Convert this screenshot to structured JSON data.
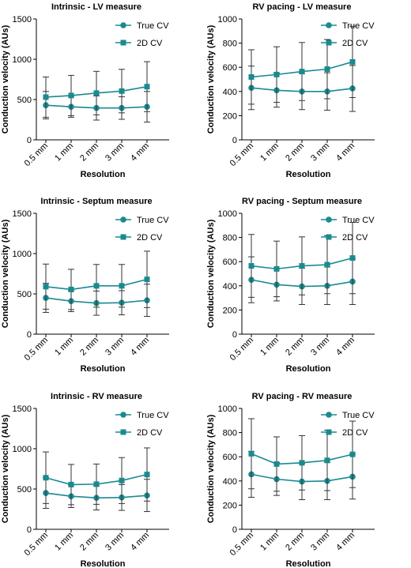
{
  "colors": {
    "series": "#1a8a8f",
    "axis": "#000000",
    "errorbar": "#333333"
  },
  "chart_data": [
    {
      "type": "line",
      "title": "Intrinsic - LV measure",
      "xlabel": "Resolution",
      "ylabel": "Conduction velocity (AUs)",
      "categories": [
        "0.5 mm",
        "1 mm",
        "2 mm",
        "3 mm",
        "4 mm"
      ],
      "ylim": [
        0,
        1500
      ],
      "yticks": [
        "0",
        "500",
        "1000",
        "1500"
      ],
      "legend_position": "top-right",
      "series": [
        {
          "name": "True CV",
          "marker": "circle",
          "values": [
            430,
            410,
            395,
            395,
            410
          ],
          "err": [
            170,
            130,
            150,
            140,
            190
          ]
        },
        {
          "name": "2D CV",
          "marker": "square",
          "values": [
            530,
            550,
            580,
            605,
            660
          ],
          "err": [
            250,
            250,
            270,
            270,
            310
          ]
        }
      ]
    },
    {
      "type": "line",
      "title": "RV pacing - LV measure",
      "xlabel": "Resolution",
      "ylabel": "Conduction velocity (AUs)",
      "categories": [
        "0.5 mm",
        "1 mm",
        "2 mm",
        "3 mm",
        "4 mm"
      ],
      "ylim": [
        0,
        1000
      ],
      "yticks": [
        "0",
        "200",
        "400",
        "600",
        "800",
        "1000"
      ],
      "legend_position": "top-right",
      "series": [
        {
          "name": "True CV",
          "marker": "circle",
          "values": [
            430,
            410,
            400,
            400,
            425
          ],
          "err": [
            180,
            140,
            150,
            155,
            190
          ]
        },
        {
          "name": "2D CV",
          "marker": "square",
          "values": [
            520,
            540,
            565,
            585,
            645
          ],
          "err": [
            225,
            230,
            240,
            245,
            295
          ]
        }
      ]
    },
    {
      "type": "line",
      "title": "Intrinsic - Septum measure",
      "xlabel": "Resolution",
      "ylabel": "Conduction velocity (AUs)",
      "categories": [
        "0.5 mm",
        "1 mm",
        "2 mm",
        "3 mm",
        "4 mm"
      ],
      "ylim": [
        0,
        1500
      ],
      "yticks": [
        "0",
        "500",
        "1000",
        "1500"
      ],
      "legend_position": "top-right",
      "series": [
        {
          "name": "True CV",
          "marker": "circle",
          "values": [
            450,
            410,
            385,
            390,
            420
          ],
          "err": [
            180,
            130,
            150,
            150,
            200
          ]
        },
        {
          "name": "2D CV",
          "marker": "square",
          "values": [
            590,
            555,
            600,
            600,
            680
          ],
          "err": [
            280,
            250,
            265,
            265,
            350
          ]
        }
      ]
    },
    {
      "type": "line",
      "title": "RV pacing - Septum measure",
      "xlabel": "Resolution",
      "ylabel": "Conduction velocity (AUs)",
      "categories": [
        "0.5 mm",
        "1 mm",
        "2 mm",
        "3 mm",
        "4 mm"
      ],
      "ylim": [
        0,
        1000
      ],
      "yticks": [
        "0",
        "200",
        "400",
        "600",
        "800",
        "1000"
      ],
      "legend_position": "top-right",
      "series": [
        {
          "name": "True CV",
          "marker": "circle",
          "values": [
            450,
            410,
            395,
            400,
            435
          ],
          "err": [
            190,
            135,
            150,
            155,
            190
          ]
        },
        {
          "name": "2D CV",
          "marker": "square",
          "values": [
            565,
            540,
            565,
            575,
            630
          ],
          "err": [
            260,
            230,
            240,
            240,
            295
          ]
        }
      ]
    },
    {
      "type": "line",
      "title": "Intrinsic - RV measure",
      "xlabel": "Resolution",
      "ylabel": "Conduction velocity (AUs)",
      "categories": [
        "0.5 mm",
        "1 mm",
        "2 mm",
        "3 mm",
        "4 mm"
      ],
      "ylim": [
        0,
        1500
      ],
      "yticks": [
        "0",
        "500",
        "1000",
        "1500"
      ],
      "legend_position": "top-right",
      "series": [
        {
          "name": "True CV",
          "marker": "circle",
          "values": [
            450,
            410,
            390,
            395,
            420
          ],
          "err": [
            190,
            140,
            150,
            160,
            200
          ]
        },
        {
          "name": "2D CV",
          "marker": "square",
          "values": [
            640,
            555,
            560,
            605,
            680
          ],
          "err": [
            320,
            250,
            250,
            285,
            330
          ]
        }
      ]
    },
    {
      "type": "line",
      "title": "RV pacing - RV measure",
      "xlabel": "Resolution",
      "ylabel": "Conduction velocity (AUs)",
      "categories": [
        "0.5 mm",
        "1 mm",
        "2 mm",
        "3 mm",
        "4 mm"
      ],
      "ylim": [
        0,
        1000
      ],
      "yticks": [
        "0",
        "200",
        "400",
        "600",
        "800",
        "1000"
      ],
      "legend_position": "top-right",
      "series": [
        {
          "name": "True CV",
          "marker": "circle",
          "values": [
            455,
            415,
            395,
            400,
            435
          ],
          "err": [
            190,
            135,
            150,
            155,
            185
          ]
        },
        {
          "name": "2D CV",
          "marker": "square",
          "values": [
            625,
            540,
            550,
            570,
            620
          ],
          "err": [
            290,
            225,
            225,
            250,
            275
          ]
        }
      ]
    }
  ]
}
